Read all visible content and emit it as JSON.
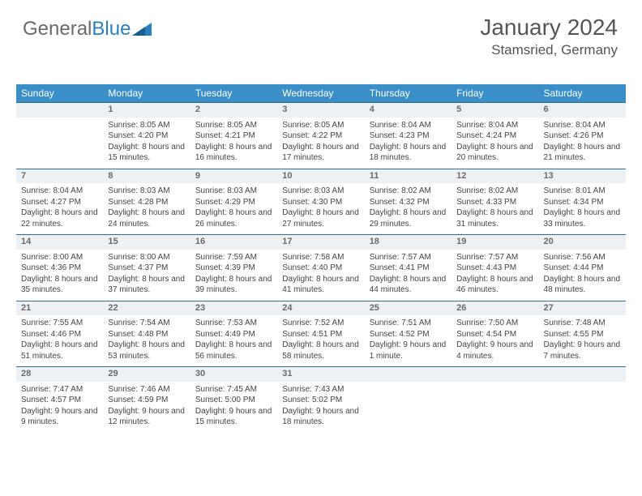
{
  "logo": {
    "part1": "General",
    "part2": "Blue"
  },
  "header": {
    "month": "January 2024",
    "location": "Stamsried, Germany"
  },
  "days": [
    "Sunday",
    "Monday",
    "Tuesday",
    "Wednesday",
    "Thursday",
    "Friday",
    "Saturday"
  ],
  "colors": {
    "header_bg": "#3a8fc9",
    "daynum_bg": "#eef1f3",
    "border": "#2a6fa0",
    "text": "#444444",
    "logo_gray": "#6a6a6a",
    "logo_blue": "#2a7fbf"
  },
  "weeks": [
    {
      "nums": [
        "",
        "1",
        "2",
        "3",
        "4",
        "5",
        "6"
      ],
      "cells": [
        {
          "sunrise": "",
          "sunset": "",
          "daylight": ""
        },
        {
          "sunrise": "Sunrise: 8:05 AM",
          "sunset": "Sunset: 4:20 PM",
          "daylight": "Daylight: 8 hours and 15 minutes."
        },
        {
          "sunrise": "Sunrise: 8:05 AM",
          "sunset": "Sunset: 4:21 PM",
          "daylight": "Daylight: 8 hours and 16 minutes."
        },
        {
          "sunrise": "Sunrise: 8:05 AM",
          "sunset": "Sunset: 4:22 PM",
          "daylight": "Daylight: 8 hours and 17 minutes."
        },
        {
          "sunrise": "Sunrise: 8:04 AM",
          "sunset": "Sunset: 4:23 PM",
          "daylight": "Daylight: 8 hours and 18 minutes."
        },
        {
          "sunrise": "Sunrise: 8:04 AM",
          "sunset": "Sunset: 4:24 PM",
          "daylight": "Daylight: 8 hours and 20 minutes."
        },
        {
          "sunrise": "Sunrise: 8:04 AM",
          "sunset": "Sunset: 4:26 PM",
          "daylight": "Daylight: 8 hours and 21 minutes."
        }
      ]
    },
    {
      "nums": [
        "7",
        "8",
        "9",
        "10",
        "11",
        "12",
        "13"
      ],
      "cells": [
        {
          "sunrise": "Sunrise: 8:04 AM",
          "sunset": "Sunset: 4:27 PM",
          "daylight": "Daylight: 8 hours and 22 minutes."
        },
        {
          "sunrise": "Sunrise: 8:03 AM",
          "sunset": "Sunset: 4:28 PM",
          "daylight": "Daylight: 8 hours and 24 minutes."
        },
        {
          "sunrise": "Sunrise: 8:03 AM",
          "sunset": "Sunset: 4:29 PM",
          "daylight": "Daylight: 8 hours and 26 minutes."
        },
        {
          "sunrise": "Sunrise: 8:03 AM",
          "sunset": "Sunset: 4:30 PM",
          "daylight": "Daylight: 8 hours and 27 minutes."
        },
        {
          "sunrise": "Sunrise: 8:02 AM",
          "sunset": "Sunset: 4:32 PM",
          "daylight": "Daylight: 8 hours and 29 minutes."
        },
        {
          "sunrise": "Sunrise: 8:02 AM",
          "sunset": "Sunset: 4:33 PM",
          "daylight": "Daylight: 8 hours and 31 minutes."
        },
        {
          "sunrise": "Sunrise: 8:01 AM",
          "sunset": "Sunset: 4:34 PM",
          "daylight": "Daylight: 8 hours and 33 minutes."
        }
      ]
    },
    {
      "nums": [
        "14",
        "15",
        "16",
        "17",
        "18",
        "19",
        "20"
      ],
      "cells": [
        {
          "sunrise": "Sunrise: 8:00 AM",
          "sunset": "Sunset: 4:36 PM",
          "daylight": "Daylight: 8 hours and 35 minutes."
        },
        {
          "sunrise": "Sunrise: 8:00 AM",
          "sunset": "Sunset: 4:37 PM",
          "daylight": "Daylight: 8 hours and 37 minutes."
        },
        {
          "sunrise": "Sunrise: 7:59 AM",
          "sunset": "Sunset: 4:39 PM",
          "daylight": "Daylight: 8 hours and 39 minutes."
        },
        {
          "sunrise": "Sunrise: 7:58 AM",
          "sunset": "Sunset: 4:40 PM",
          "daylight": "Daylight: 8 hours and 41 minutes."
        },
        {
          "sunrise": "Sunrise: 7:57 AM",
          "sunset": "Sunset: 4:41 PM",
          "daylight": "Daylight: 8 hours and 44 minutes."
        },
        {
          "sunrise": "Sunrise: 7:57 AM",
          "sunset": "Sunset: 4:43 PM",
          "daylight": "Daylight: 8 hours and 46 minutes."
        },
        {
          "sunrise": "Sunrise: 7:56 AM",
          "sunset": "Sunset: 4:44 PM",
          "daylight": "Daylight: 8 hours and 48 minutes."
        }
      ]
    },
    {
      "nums": [
        "21",
        "22",
        "23",
        "24",
        "25",
        "26",
        "27"
      ],
      "cells": [
        {
          "sunrise": "Sunrise: 7:55 AM",
          "sunset": "Sunset: 4:46 PM",
          "daylight": "Daylight: 8 hours and 51 minutes."
        },
        {
          "sunrise": "Sunrise: 7:54 AM",
          "sunset": "Sunset: 4:48 PM",
          "daylight": "Daylight: 8 hours and 53 minutes."
        },
        {
          "sunrise": "Sunrise: 7:53 AM",
          "sunset": "Sunset: 4:49 PM",
          "daylight": "Daylight: 8 hours and 56 minutes."
        },
        {
          "sunrise": "Sunrise: 7:52 AM",
          "sunset": "Sunset: 4:51 PM",
          "daylight": "Daylight: 8 hours and 58 minutes."
        },
        {
          "sunrise": "Sunrise: 7:51 AM",
          "sunset": "Sunset: 4:52 PM",
          "daylight": "Daylight: 9 hours and 1 minute."
        },
        {
          "sunrise": "Sunrise: 7:50 AM",
          "sunset": "Sunset: 4:54 PM",
          "daylight": "Daylight: 9 hours and 4 minutes."
        },
        {
          "sunrise": "Sunrise: 7:48 AM",
          "sunset": "Sunset: 4:55 PM",
          "daylight": "Daylight: 9 hours and 7 minutes."
        }
      ]
    },
    {
      "nums": [
        "28",
        "29",
        "30",
        "31",
        "",
        "",
        ""
      ],
      "cells": [
        {
          "sunrise": "Sunrise: 7:47 AM",
          "sunset": "Sunset: 4:57 PM",
          "daylight": "Daylight: 9 hours and 9 minutes."
        },
        {
          "sunrise": "Sunrise: 7:46 AM",
          "sunset": "Sunset: 4:59 PM",
          "daylight": "Daylight: 9 hours and 12 minutes."
        },
        {
          "sunrise": "Sunrise: 7:45 AM",
          "sunset": "Sunset: 5:00 PM",
          "daylight": "Daylight: 9 hours and 15 minutes."
        },
        {
          "sunrise": "Sunrise: 7:43 AM",
          "sunset": "Sunset: 5:02 PM",
          "daylight": "Daylight: 9 hours and 18 minutes."
        },
        {
          "sunrise": "",
          "sunset": "",
          "daylight": ""
        },
        {
          "sunrise": "",
          "sunset": "",
          "daylight": ""
        },
        {
          "sunrise": "",
          "sunset": "",
          "daylight": ""
        }
      ]
    }
  ]
}
